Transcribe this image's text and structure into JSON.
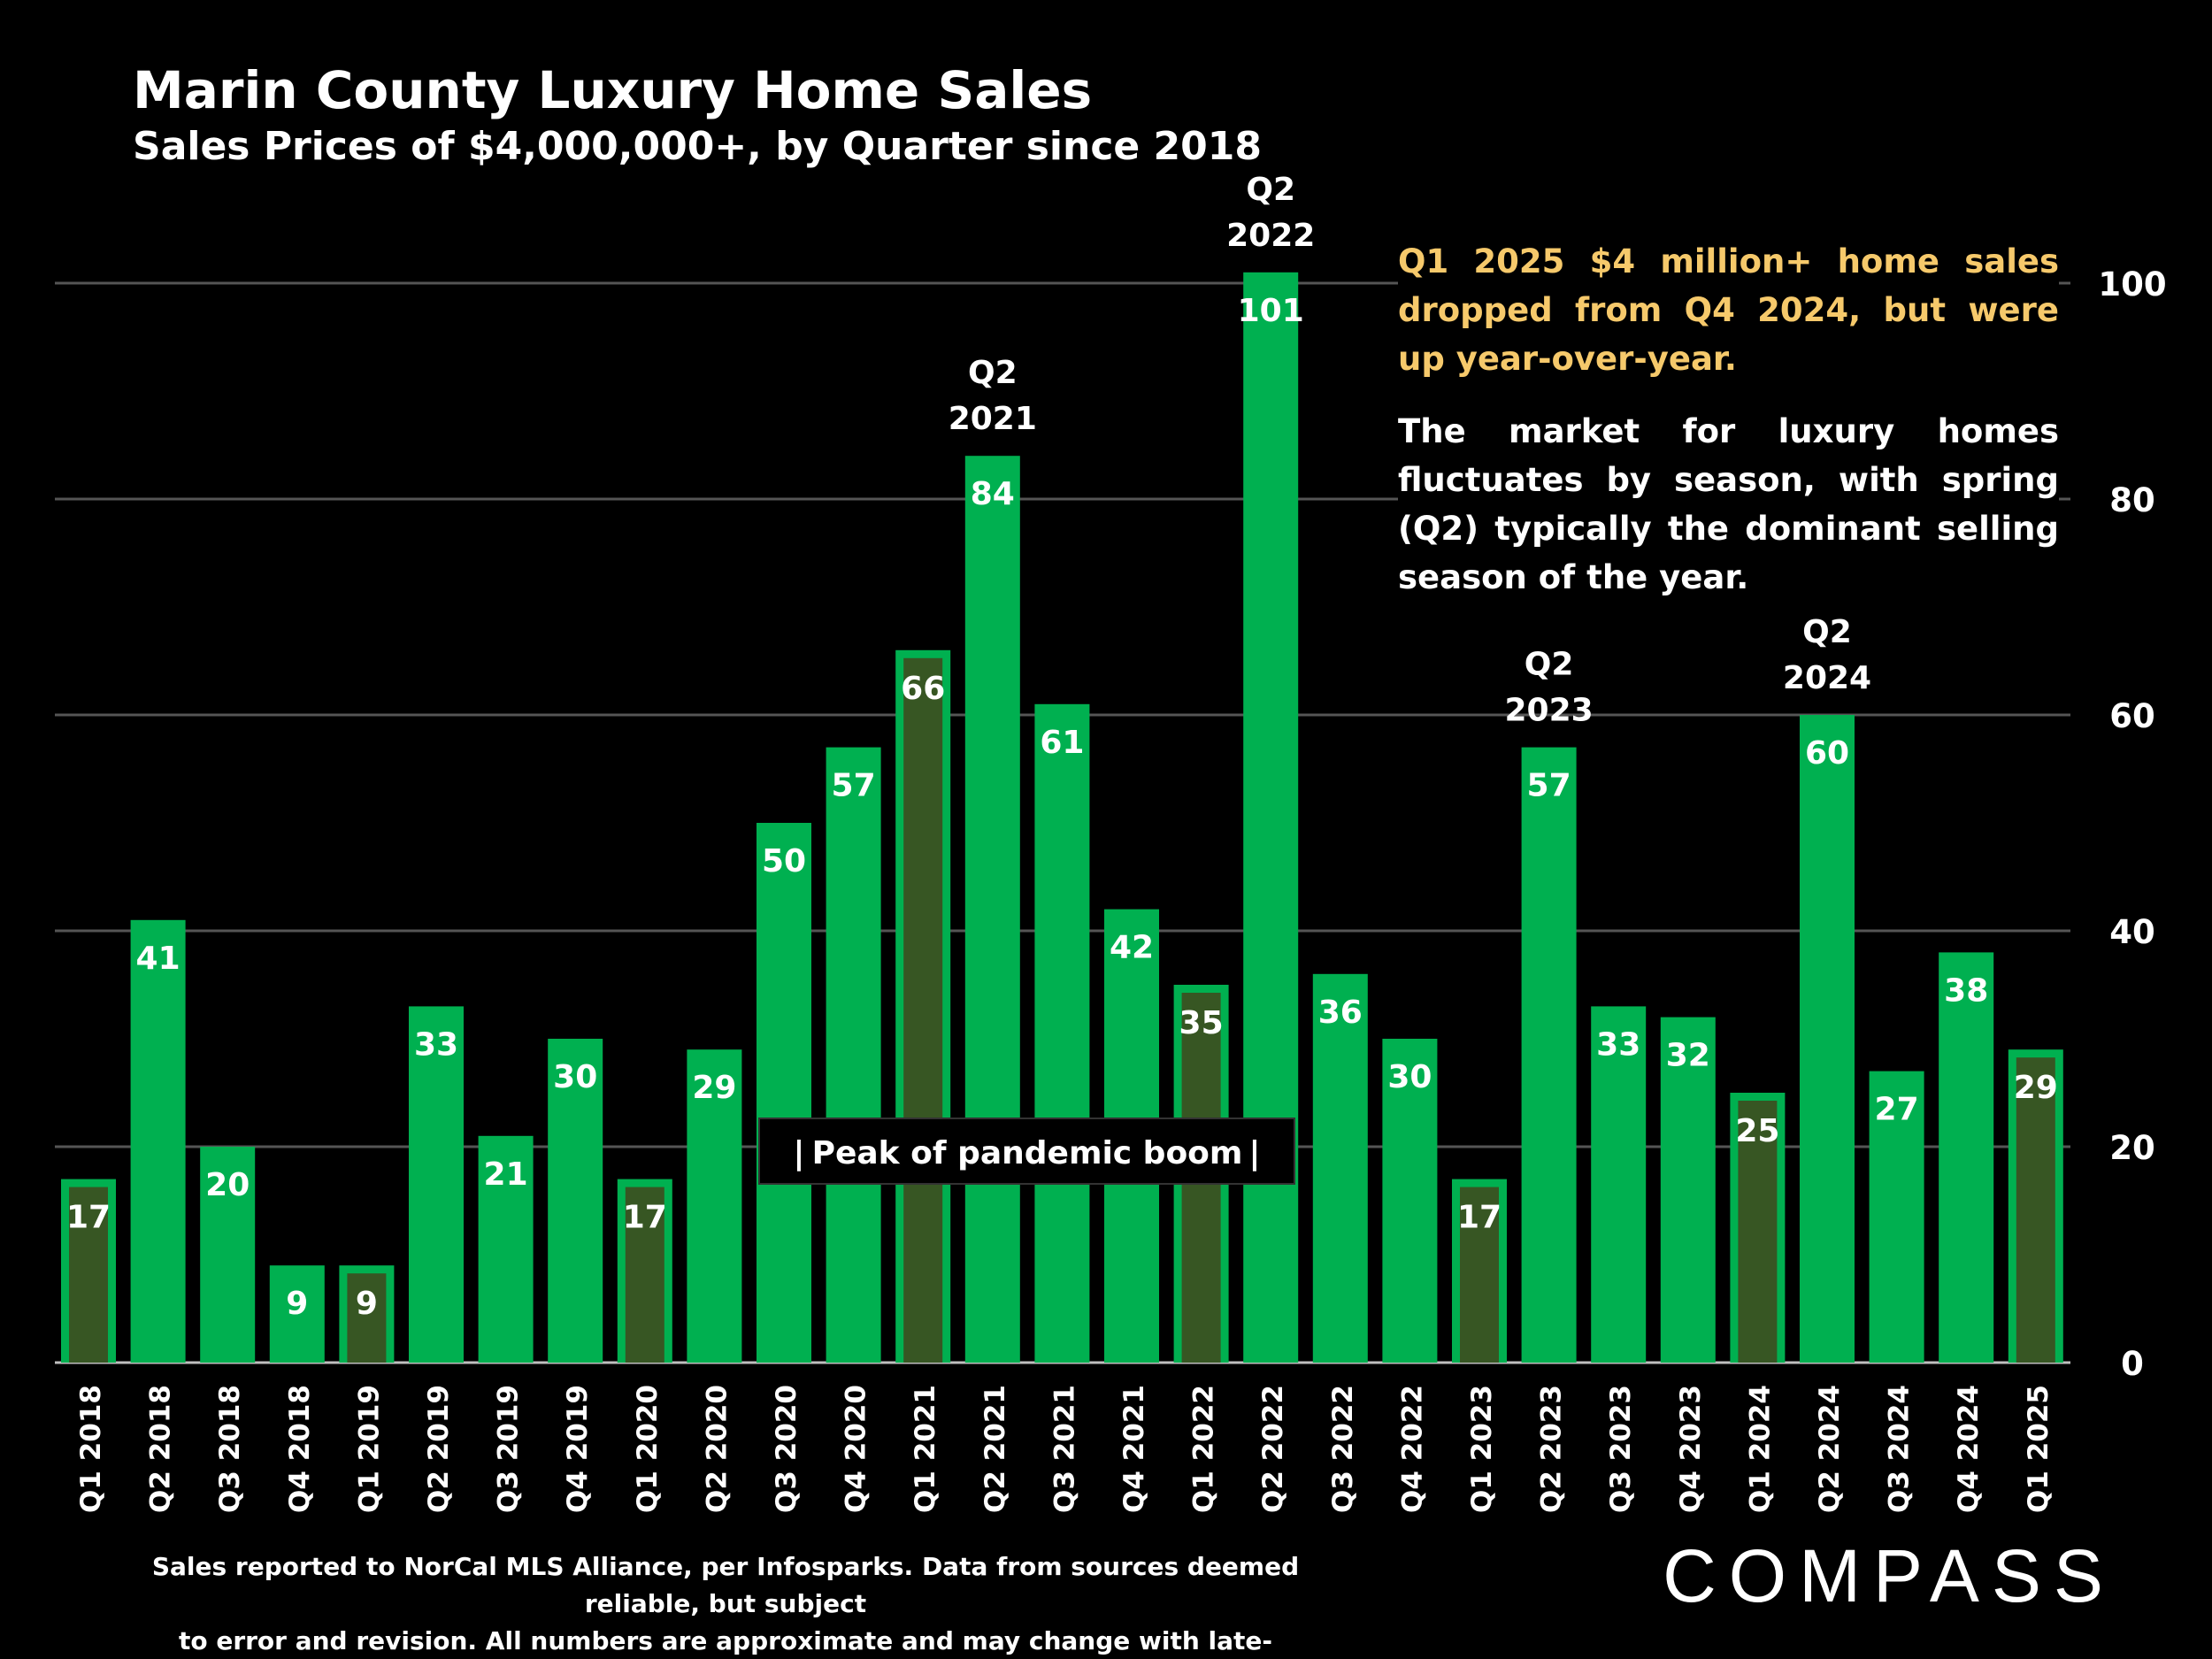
{
  "title": "Marin County Luxury Home Sales",
  "subtitle": "Sales Prices of $4,000,000+, by Quarter since 2018",
  "notes": {
    "highlight": "Q1 2025 $4 million+ home sales dropped from Q4 2024, but were up year-over-year.",
    "body": "The market for luxury homes fluctuates by season, with spring (Q2) typically the dominant selling season of the year."
  },
  "footer": {
    "line1": "Sales reported to NorCal MLS Alliance, per Infosparks. Data from sources deemed reliable, but subject",
    "line2": "to error and revision. All numbers are approximate and may change with late-reported sales."
  },
  "brand": {
    "logo_text": "COMPASS"
  },
  "colors": {
    "bar": "#00b050",
    "bar_highlight_fill": "#375623",
    "background": "#000000",
    "note_highlight": "#f6c96b"
  },
  "chart_data": {
    "type": "bar",
    "title": "Marin County Luxury Home Sales",
    "categories": [
      "Q1 2018",
      "Q2 2018",
      "Q3 2018",
      "Q4 2018",
      "Q1 2019",
      "Q2 2019",
      "Q3 2019",
      "Q4 2019",
      "Q1 2020",
      "Q2 2020",
      "Q3 2020",
      "Q4 2020",
      "Q1 2021",
      "Q2 2021",
      "Q3 2021",
      "Q4 2021",
      "Q1 2022",
      "Q2 2022",
      "Q3 2022",
      "Q4 2022",
      "Q1 2023",
      "Q2 2023",
      "Q3 2023",
      "Q4 2023",
      "Q1 2024",
      "Q2 2024",
      "Q3 2024",
      "Q4 2024",
      "Q1 2025"
    ],
    "values": [
      17,
      41,
      20,
      9,
      9,
      33,
      21,
      30,
      17,
      29,
      50,
      57,
      66,
      84,
      61,
      42,
      35,
      101,
      36,
      30,
      17,
      57,
      33,
      32,
      25,
      60,
      27,
      38,
      29
    ],
    "highlighted_q1": [
      "Q1 2018",
      "Q1 2019",
      "Q1 2020",
      "Q1 2021",
      "Q1 2022",
      "Q1 2023",
      "Q1 2024",
      "Q1 2025"
    ],
    "yaxis": {
      "ticks": [
        0,
        20,
        40,
        60,
        80,
        100
      ],
      "position": "right",
      "ylim": [
        0,
        101
      ]
    },
    "grid": true,
    "annotations": {
      "peak_labels": [
        {
          "category": "Q2 2021",
          "line1": "Q2",
          "line2": "2021"
        },
        {
          "category": "Q2 2022",
          "line1": "Q2",
          "line2": "2022"
        },
        {
          "category": "Q2 2023",
          "line1": "Q2",
          "line2": "2023"
        },
        {
          "category": "Q2 2024",
          "line1": "Q2",
          "line2": "2024"
        }
      ],
      "pandemic_box": {
        "text": "Peak of pandemic boom",
        "bar_left": "|",
        "bar_right": "|"
      }
    }
  }
}
